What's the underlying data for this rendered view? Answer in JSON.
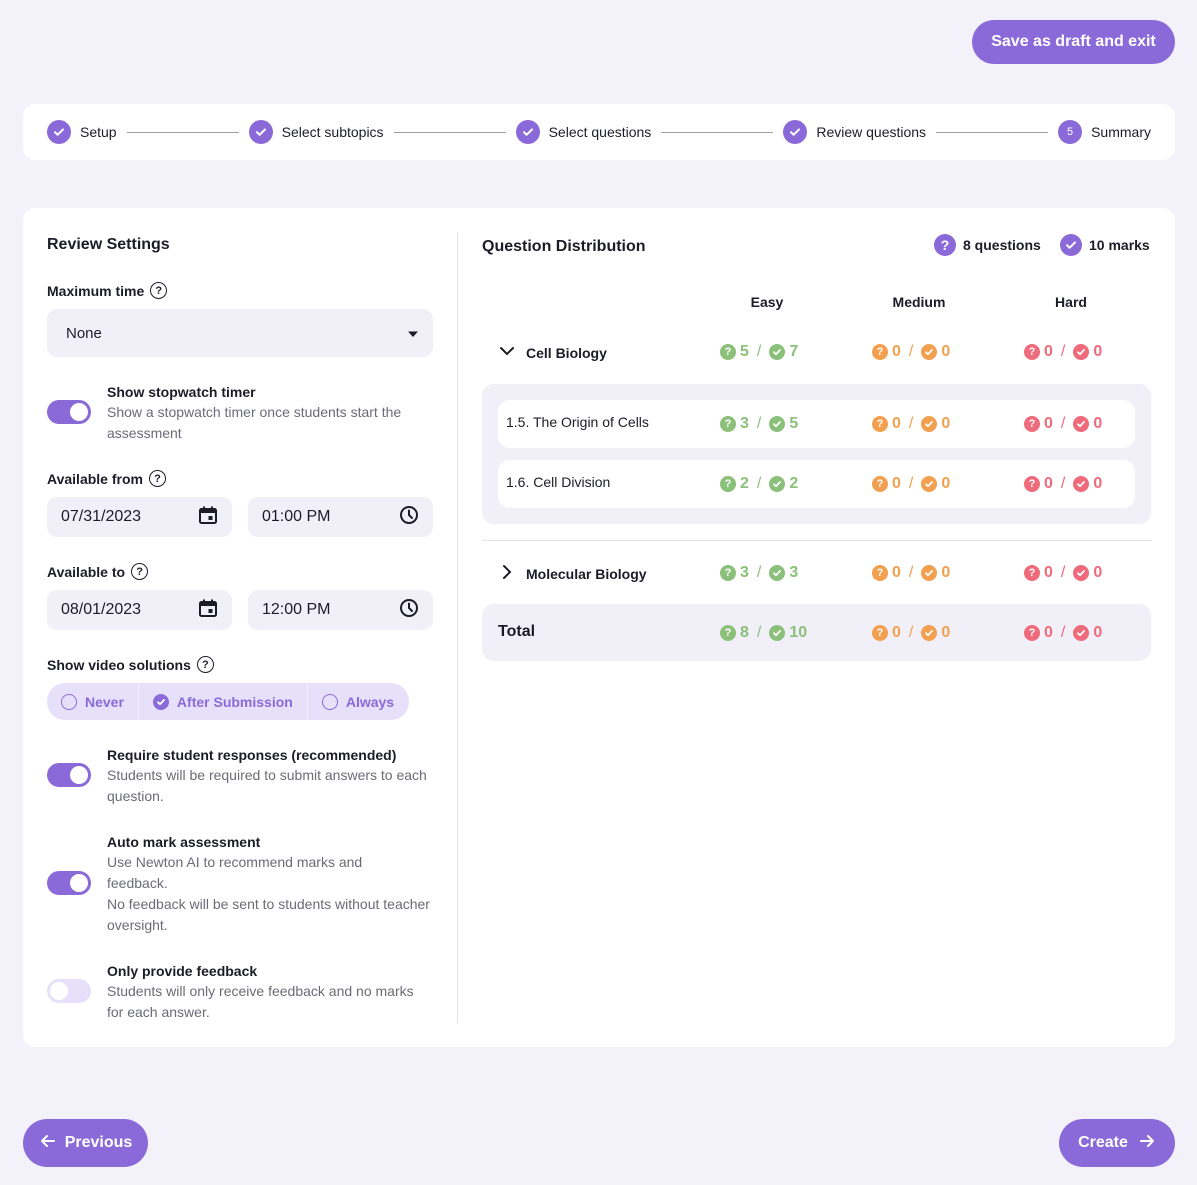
{
  "header": {
    "draft_button": "Save as draft and exit"
  },
  "stepper": {
    "steps": [
      {
        "label": "Setup",
        "state": "done"
      },
      {
        "label": "Select subtopics",
        "state": "done"
      },
      {
        "label": "Select questions",
        "state": "done"
      },
      {
        "label": "Review questions",
        "state": "done"
      },
      {
        "label": "Summary",
        "state": "current",
        "number": "5"
      }
    ]
  },
  "settings": {
    "title": "Review Settings",
    "max_time": {
      "label": "Maximum time",
      "value": "None"
    },
    "stopwatch": {
      "title": "Show stopwatch timer",
      "desc": "Show a stopwatch timer once students start the assessment",
      "on": true
    },
    "available_from": {
      "label": "Available from",
      "date": "07/31/2023",
      "time": "01:00 PM"
    },
    "available_to": {
      "label": "Available to",
      "date": "08/01/2023",
      "time": "12:00 PM"
    },
    "video": {
      "label": "Show video solutions",
      "options": [
        "Never",
        "After Submission",
        "Always"
      ],
      "selected": "After Submission"
    },
    "require": {
      "title": "Require student responses (recommended)",
      "desc": "Students will be required to submit answers to each question.",
      "on": true
    },
    "automark": {
      "title": "Auto mark assessment",
      "desc1": "Use Newton AI to recommend marks and feedback.",
      "desc2": "No feedback will be sent to students without teacher oversight.",
      "on": true
    },
    "feedback": {
      "title": "Only provide feedback",
      "desc": "Students will only receive feedback and no marks for each answer.",
      "on": false
    }
  },
  "distribution": {
    "title": "Question Distribution",
    "questions": "8 questions",
    "marks": "10 marks",
    "columns": [
      "Easy",
      "Medium",
      "Hard"
    ],
    "rows": [
      {
        "name": "Cell Biology",
        "easy": [
          "5",
          "7"
        ],
        "medium": [
          "0",
          "0"
        ],
        "hard": [
          "0",
          "0"
        ]
      },
      {
        "name": "1.5. The Origin of Cells",
        "easy": [
          "3",
          "5"
        ],
        "medium": [
          "0",
          "0"
        ],
        "hard": [
          "0",
          "0"
        ]
      },
      {
        "name": "1.6. Cell Division",
        "easy": [
          "2",
          "2"
        ],
        "medium": [
          "0",
          "0"
        ],
        "hard": [
          "0",
          "0"
        ]
      },
      {
        "name": "Molecular Biology",
        "easy": [
          "3",
          "3"
        ],
        "medium": [
          "0",
          "0"
        ],
        "hard": [
          "0",
          "0"
        ]
      },
      {
        "name": "Total",
        "easy": [
          "8",
          "10"
        ],
        "medium": [
          "0",
          "0"
        ],
        "hard": [
          "0",
          "0"
        ]
      }
    ]
  },
  "footer": {
    "previous": "Previous",
    "create": "Create"
  },
  "colors": {
    "accent": "#8a6ad8",
    "easy": "#8bc07a",
    "medium": "#f2a04f",
    "hard": "#ef6a7a"
  }
}
